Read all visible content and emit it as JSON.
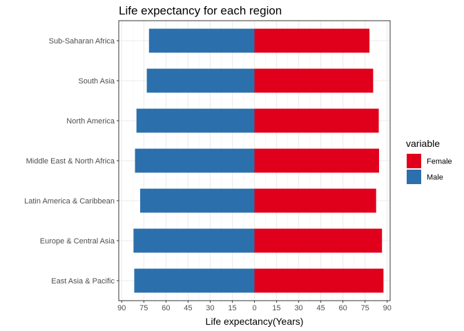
{
  "chart_data": {
    "type": "bar",
    "orientation": "horizontal",
    "title": "Life expectancy for each region",
    "xlabel": "Life expectancy(Years)",
    "ylabel": "",
    "categories": [
      "East Asia & Pacific",
      "Europe & Central Asia",
      "Latin America & Caribbean",
      "Middle East & North Africa",
      "North America",
      "South Asia",
      "Sub-Saharan Africa"
    ],
    "series": [
      {
        "name": "Female",
        "color": "#e0001b",
        "values": [
          87.5,
          86.5,
          82.5,
          84.5,
          84.3,
          80.5,
          78
        ]
      },
      {
        "name": "Male",
        "color": "#2c6fad",
        "values": [
          81.5,
          82,
          77.5,
          81,
          80,
          73,
          71.5
        ]
      }
    ],
    "x_ticks": [
      -90,
      -75,
      -60,
      -45,
      -30,
      -15,
      0,
      15,
      30,
      45,
      60,
      75,
      90
    ],
    "x_tick_labels": [
      "90",
      "75",
      "60",
      "45",
      "30",
      "15",
      "0",
      "15",
      "30",
      "45",
      "60",
      "75",
      "90"
    ],
    "xlim": [
      -92,
      92
    ],
    "grid": true,
    "legend": {
      "title": "variable",
      "position": "right",
      "entries": [
        {
          "label": "Female",
          "color": "#e0001b"
        },
        {
          "label": "Male",
          "color": "#2c6fad"
        }
      ]
    }
  }
}
